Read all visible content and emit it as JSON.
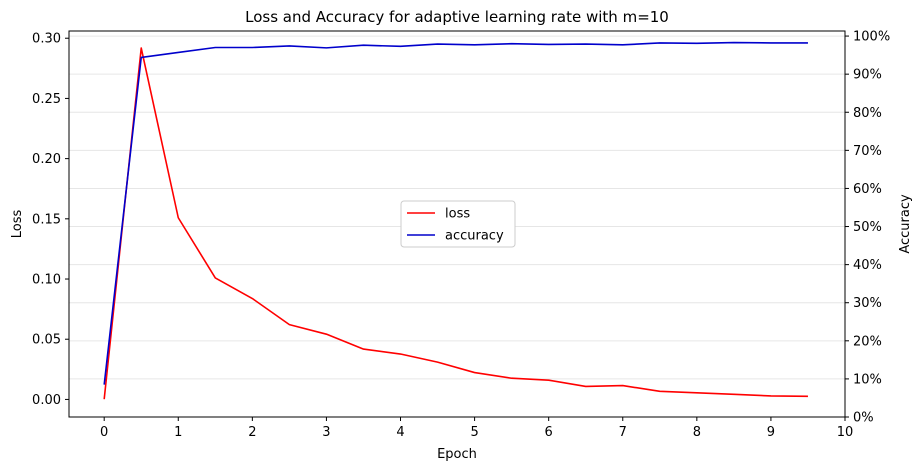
{
  "chart_data": {
    "type": "line",
    "title": "Loss and Accuracy for adaptive learning rate with m=10",
    "xlabel": "Epoch",
    "ylabel_left": "Loss",
    "ylabel_right": "Accuracy",
    "xlim": [
      -0.475,
      10
    ],
    "xticks": [
      0,
      1,
      2,
      3,
      4,
      5,
      6,
      7,
      8,
      9,
      10
    ],
    "ylim_left": [
      -0.0146,
      0.306
    ],
    "yticks_left": [
      0.0,
      0.05,
      0.1,
      0.15,
      0.2,
      0.25,
      0.3
    ],
    "ytick_labels_left": [
      "0.00",
      "0.05",
      "0.10",
      "0.15",
      "0.20",
      "0.25",
      "0.30"
    ],
    "ylim_right": [
      0,
      1.0133
    ],
    "yticks_right": [
      0,
      0.1,
      0.2,
      0.3,
      0.4,
      0.5,
      0.6,
      0.7,
      0.8,
      0.9,
      1.0
    ],
    "ytick_labels_right": [
      "0%",
      "10%",
      "20%",
      "30%",
      "40%",
      "50%",
      "60%",
      "70%",
      "80%",
      "90%",
      "100%"
    ],
    "grid": "horizontal",
    "legend_position": "center",
    "x": [
      0,
      0.5,
      1,
      1.5,
      2,
      2.5,
      3,
      3.5,
      4,
      4.5,
      5,
      5.5,
      6,
      6.5,
      7,
      7.5,
      8,
      8.5,
      9,
      9.5
    ],
    "series": [
      {
        "name": "loss",
        "axis": "left",
        "color": "#ff0000",
        "values": [
          0.0002,
          0.2918,
          0.1509,
          0.1009,
          0.0838,
          0.0621,
          0.0542,
          0.0418,
          0.0377,
          0.031,
          0.0223,
          0.0176,
          0.016,
          0.0108,
          0.0115,
          0.0067,
          0.0055,
          0.0042,
          0.0029,
          0.0026
        ]
      },
      {
        "name": "accuracy",
        "axis": "right",
        "color": "#0000cc",
        "values": [
          0.085,
          0.944,
          0.957,
          0.97,
          0.97,
          0.974,
          0.969,
          0.976,
          0.973,
          0.979,
          0.977,
          0.98,
          0.978,
          0.979,
          0.977,
          0.982,
          0.981,
          0.983,
          0.982,
          0.982
        ]
      }
    ]
  }
}
